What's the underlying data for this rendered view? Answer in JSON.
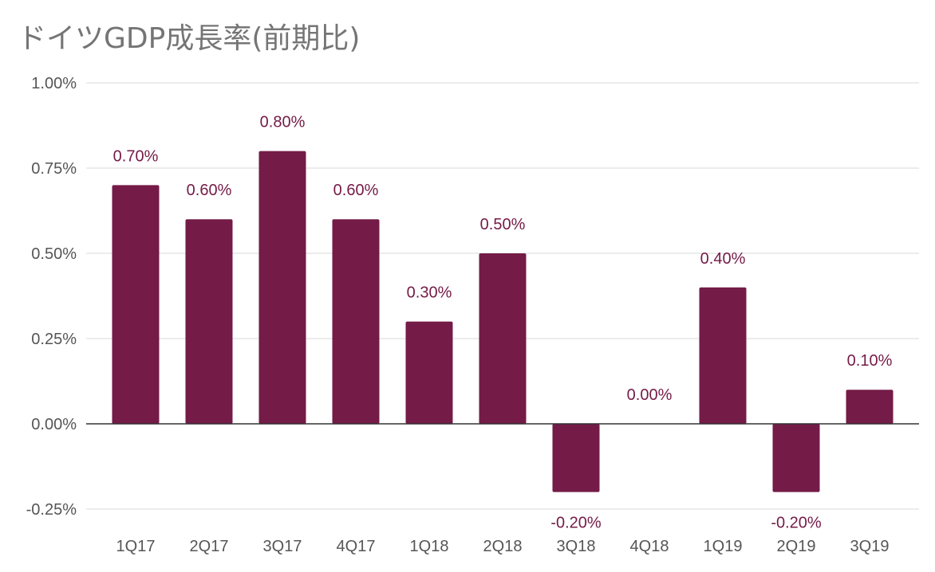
{
  "chart_data": {
    "type": "bar",
    "title": "ドイツGDP成長率(前期比)",
    "xlabel": "",
    "ylabel": "",
    "categories": [
      "1Q17",
      "2Q17",
      "3Q17",
      "4Q17",
      "1Q18",
      "2Q18",
      "3Q18",
      "4Q18",
      "1Q19",
      "2Q19",
      "3Q19"
    ],
    "values": [
      0.7,
      0.6,
      0.8,
      0.6,
      0.3,
      0.5,
      -0.2,
      0.0,
      0.4,
      -0.2,
      0.1
    ],
    "data_labels": [
      "0.70%",
      "0.60%",
      "0.80%",
      "0.60%",
      "0.30%",
      "0.50%",
      "-0.20%",
      "0.00%",
      "0.40%",
      "-0.20%",
      "0.10%"
    ],
    "y_ticks": [
      1.0,
      0.75,
      0.5,
      0.25,
      0.0,
      -0.25
    ],
    "y_tick_labels": [
      "1.00%",
      "0.75%",
      "0.50%",
      "0.25%",
      "0.00%",
      "-0.25%"
    ],
    "ylim": [
      -0.25,
      1.0
    ],
    "grid": true,
    "legend": "none",
    "colors": {
      "bar": "#741b47",
      "label": "#741b47",
      "title": "#757575"
    }
  }
}
